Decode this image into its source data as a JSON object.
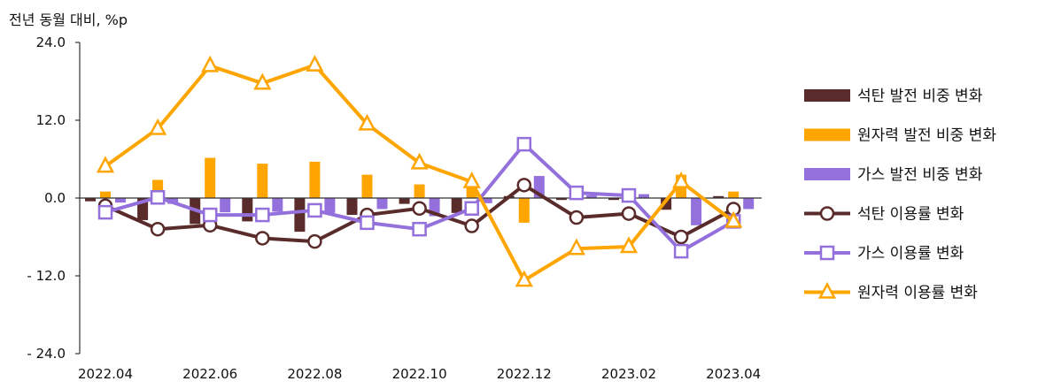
{
  "chart_data": {
    "type": "bar+line",
    "ylabel": "전년 동월 대비, %p",
    "ylim": [
      -24,
      24
    ],
    "yticks": [
      "24.0",
      "12.0",
      "0.0",
      "- 12.0",
      "- 24.0"
    ],
    "ytick_values": [
      24,
      12,
      0,
      -12,
      -24
    ],
    "categories": [
      "2022.04",
      "2022.05",
      "2022.06",
      "2022.07",
      "2022.08",
      "2022.09",
      "2022.10",
      "2022.11",
      "2022.12",
      "2023.01",
      "2023.02",
      "2023.03",
      "2023.04"
    ],
    "xtick_labels": [
      "2022.04",
      "",
      "2022.06",
      "",
      "2022.08",
      "",
      "2022.10",
      "",
      "2022.12",
      "",
      "2023.02",
      "",
      "2023.04"
    ],
    "bar_series": [
      {
        "name": "석탄 발전 비중 변화",
        "color": "#5a2b2b",
        "values": [
          -0.5,
          -3.4,
          -4.0,
          -3.6,
          -5.2,
          -2.6,
          -0.9,
          -2.3,
          0.3,
          -0.3,
          -0.3,
          -1.8,
          0.3
        ]
      },
      {
        "name": "원자력 발전 비중 변화",
        "color": "#ffa500",
        "values": [
          1.0,
          2.8,
          6.2,
          5.3,
          5.6,
          3.6,
          2.1,
          1.7,
          -3.8,
          -0.2,
          -0.3,
          3.6,
          1.0
        ]
      },
      {
        "name": "가스 발전 비중 변화",
        "color": "#9370db",
        "values": [
          -0.7,
          -0.9,
          -2.2,
          -2.1,
          -2.3,
          -1.7,
          -2.8,
          -0.8,
          3.4,
          0.4,
          0.6,
          -4.2,
          -1.7
        ]
      }
    ],
    "line_series": [
      {
        "name": "석탄 이용률 변화",
        "color": "#5a2b2b",
        "marker": "circle",
        "values": [
          -1.2,
          -4.8,
          -4.2,
          -6.2,
          -6.7,
          -2.6,
          -1.6,
          -4.3,
          2.0,
          -3.0,
          -2.4,
          -6.0,
          -1.7
        ]
      },
      {
        "name": "가스 이용률 변화",
        "color": "#9370db",
        "marker": "square",
        "values": [
          -2.2,
          0.1,
          -2.6,
          -2.6,
          -1.9,
          -3.8,
          -4.8,
          -1.6,
          8.3,
          0.8,
          0.4,
          -8.2,
          -3.6
        ]
      },
      {
        "name": "원자력 이용률 변화",
        "color": "#ffa500",
        "marker": "triangle",
        "values": [
          4.9,
          10.7,
          20.4,
          17.7,
          20.5,
          11.4,
          5.4,
          2.5,
          -12.7,
          -7.8,
          -7.5,
          2.5,
          -3.6
        ]
      }
    ]
  }
}
